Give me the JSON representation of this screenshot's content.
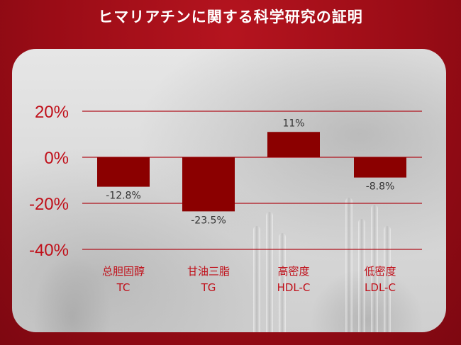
{
  "header": {
    "title": "ヒマリアチンに関する科学研究の証明"
  },
  "colors": {
    "bar": "#8b0000",
    "grid": "#b0121c",
    "tick_text": "#c0101a",
    "label_text": "#c0101a",
    "value_text": "#333333"
  },
  "chart_data": {
    "type": "bar",
    "title": "",
    "xlabel": "",
    "ylabel": "",
    "ylim": [
      -40,
      20
    ],
    "grid": true,
    "y_ticks": [
      "20%",
      "0%",
      "-20%",
      "-40%"
    ],
    "y_tick_values": [
      20,
      0,
      -20,
      -40
    ],
    "categories": [
      {
        "cn": "总胆固醇",
        "en": "TC"
      },
      {
        "cn": "甘油三脂",
        "en": "TG"
      },
      {
        "cn": "高密度",
        "en": "HDL-C"
      },
      {
        "cn": "低密度",
        "en": "LDL-C"
      }
    ],
    "values": [
      -12.8,
      -23.5,
      11,
      -8.8
    ],
    "value_labels": [
      "-12.8%",
      "-23.5%",
      "11%",
      "-8.8%"
    ]
  }
}
